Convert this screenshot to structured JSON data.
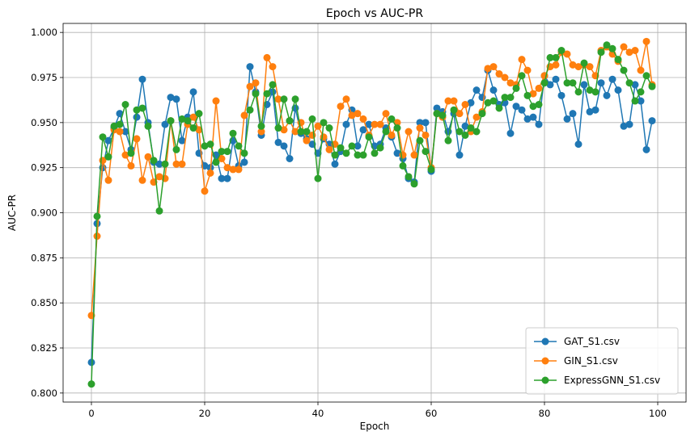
{
  "chart_data": {
    "type": "line",
    "title": "Epoch vs AUC-PR",
    "xlabel": "Epoch",
    "ylabel": "AUC-PR",
    "xlim": [
      -5,
      105
    ],
    "ylim": [
      0.795,
      1.005
    ],
    "xticks": [
      0,
      20,
      40,
      60,
      80,
      100
    ],
    "yticks": [
      0.8,
      0.825,
      0.85,
      0.875,
      0.9,
      0.925,
      0.95,
      0.975,
      1.0
    ],
    "ytick_labels": [
      "0.800",
      "0.825",
      "0.850",
      "0.875",
      "0.900",
      "0.925",
      "0.950",
      "0.975",
      "1.000"
    ],
    "grid": true,
    "legend_position": "lower right",
    "markers": true,
    "series": [
      {
        "name": "GAT_S1.csv",
        "color": "#1f77b4",
        "values": [
          0.817,
          0.894,
          0.925,
          0.94,
          0.947,
          0.955,
          0.945,
          0.935,
          0.953,
          0.974,
          0.95,
          0.928,
          0.927,
          0.949,
          0.964,
          0.963,
          0.94,
          0.953,
          0.967,
          0.933,
          0.926,
          0.925,
          0.932,
          0.919,
          0.919,
          0.94,
          0.926,
          0.928,
          0.981,
          0.967,
          0.943,
          0.96,
          0.967,
          0.939,
          0.937,
          0.93,
          0.958,
          0.944,
          0.941,
          0.938,
          0.933,
          0.941,
          0.938,
          0.927,
          0.934,
          0.949,
          0.957,
          0.937,
          0.946,
          0.949,
          0.937,
          0.938,
          0.947,
          0.942,
          0.933,
          0.93,
          0.919,
          0.917,
          0.95,
          0.95,
          0.923,
          0.958,
          0.956,
          0.945,
          0.955,
          0.932,
          0.948,
          0.961,
          0.968,
          0.964,
          0.979,
          0.968,
          0.96,
          0.961,
          0.944,
          0.959,
          0.957,
          0.952,
          0.953,
          0.949,
          0.976,
          0.971,
          0.974,
          0.965,
          0.952,
          0.955,
          0.938,
          0.971,
          0.956,
          0.957,
          0.972,
          0.965,
          0.974,
          0.968,
          0.948,
          0.949,
          0.971,
          0.962,
          0.935,
          0.951
        ]
      },
      {
        "name": "GIN_S1.csv",
        "color": "#ff7f0e",
        "values": [
          0.843,
          0.887,
          0.929,
          0.918,
          0.946,
          0.945,
          0.932,
          0.926,
          0.941,
          0.918,
          0.931,
          0.917,
          0.92,
          0.919,
          0.951,
          0.927,
          0.927,
          0.949,
          0.953,
          0.946,
          0.912,
          0.922,
          0.962,
          0.93,
          0.925,
          0.924,
          0.924,
          0.954,
          0.97,
          0.972,
          0.945,
          0.986,
          0.981,
          0.963,
          0.946,
          0.951,
          0.945,
          0.95,
          0.94,
          0.943,
          0.948,
          0.942,
          0.935,
          0.938,
          0.959,
          0.963,
          0.954,
          0.955,
          0.952,
          0.943,
          0.949,
          0.949,
          0.955,
          0.943,
          0.95,
          0.932,
          0.945,
          0.932,
          0.947,
          0.943,
          0.925,
          0.955,
          0.953,
          0.962,
          0.962,
          0.955,
          0.96,
          0.945,
          0.953,
          0.956,
          0.98,
          0.981,
          0.977,
          0.975,
          0.972,
          0.971,
          0.985,
          0.979,
          0.966,
          0.969,
          0.976,
          0.981,
          0.982,
          0.989,
          0.988,
          0.982,
          0.981,
          0.982,
          0.981,
          0.976,
          0.99,
          0.992,
          0.988,
          0.984,
          0.992,
          0.989,
          0.99,
          0.979,
          0.995,
          0.971
        ]
      },
      {
        "name": "ExpressGNN_S1.csv",
        "color": "#2ca02c",
        "values": [
          0.805,
          0.898,
          0.942,
          0.931,
          0.948,
          0.949,
          0.96,
          0.933,
          0.957,
          0.958,
          0.948,
          0.929,
          0.901,
          0.927,
          0.951,
          0.935,
          0.952,
          0.951,
          0.947,
          0.955,
          0.937,
          0.938,
          0.928,
          0.934,
          0.934,
          0.944,
          0.937,
          0.933,
          0.957,
          0.966,
          0.948,
          0.966,
          0.971,
          0.947,
          0.963,
          0.951,
          0.963,
          0.945,
          0.945,
          0.952,
          0.919,
          0.95,
          0.947,
          0.932,
          0.936,
          0.933,
          0.937,
          0.932,
          0.932,
          0.942,
          0.933,
          0.936,
          0.945,
          0.952,
          0.947,
          0.926,
          0.92,
          0.916,
          0.94,
          0.934,
          0.924,
          0.955,
          0.954,
          0.94,
          0.957,
          0.945,
          0.943,
          0.947,
          0.945,
          0.955,
          0.961,
          0.962,
          0.958,
          0.964,
          0.964,
          0.969,
          0.976,
          0.965,
          0.959,
          0.96,
          0.972,
          0.986,
          0.986,
          0.99,
          0.972,
          0.972,
          0.967,
          0.983,
          0.968,
          0.967,
          0.989,
          0.993,
          0.991,
          0.985,
          0.979,
          0.972,
          0.962,
          0.967,
          0.976,
          0.97
        ]
      }
    ]
  }
}
